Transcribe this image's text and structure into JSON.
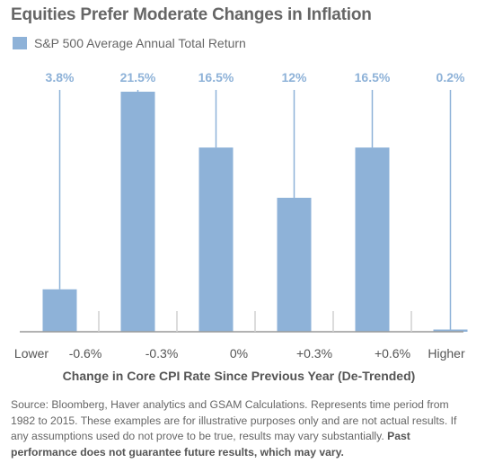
{
  "title": "Equities Prefer Moderate Changes in Inflation",
  "legend": {
    "label": "S&P 500 Average Annual Total Return"
  },
  "colors": {
    "bar": "#8eb2d8",
    "label": "#8eb2d8",
    "axis": "#999999",
    "tick": "#d0d0d0"
  },
  "chart_data": {
    "type": "bar",
    "categories": [
      "Lower",
      "-0.6% to -0.3%",
      "-0.3% to 0%",
      "0% to +0.3%",
      "+0.3% to +0.6%",
      "Higher"
    ],
    "series": [
      {
        "name": "S&P 500 Average Annual Total Return",
        "values": [
          3.8,
          21.5,
          16.5,
          12,
          16.5,
          0.2
        ]
      }
    ],
    "data_labels": [
      "3.8%",
      "21.5%",
      "16.5%",
      "12%",
      "16.5%",
      "0.2%"
    ],
    "x_tick_labels": [
      "Lower",
      "-0.6%",
      "-0.3%",
      "0%",
      "+0.3%",
      "+0.6%",
      "Higher"
    ],
    "xlabel": "Change in Core CPI Rate Since Previous Year (De-Trended)",
    "ylabel": "",
    "ylim": [
      0,
      21.5
    ],
    "grid": false
  },
  "source": {
    "text": "Source: Bloomberg, Haver analytics and GSAM Calculations. Represents time period from 1982 to 2015. These examples are for illustrative purposes only and are not actual results. If any assumptions used do not prove to be true, results may vary substantially.",
    "bold_text": "Past performance does not guarantee future results, which may vary."
  }
}
